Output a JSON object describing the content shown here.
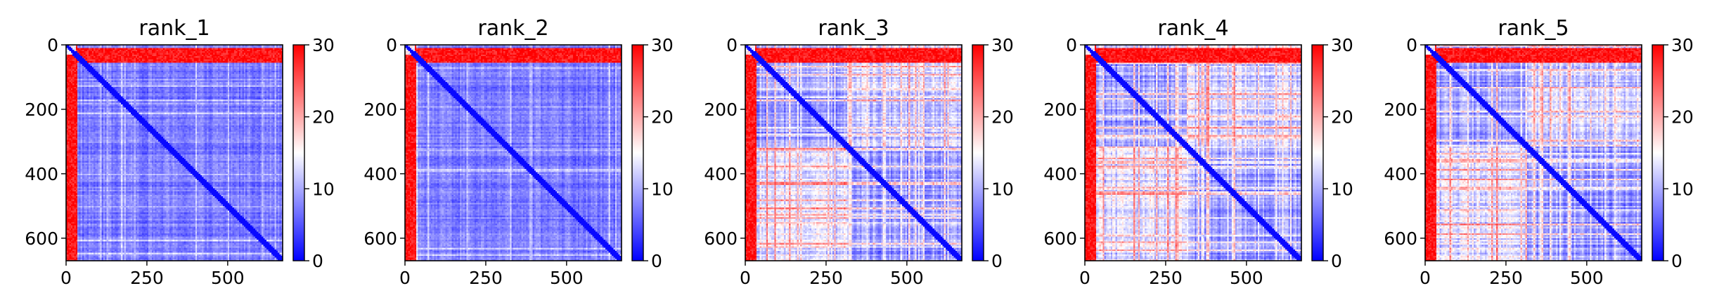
{
  "chart_data": [
    {
      "type": "heatmap",
      "title": "rank_1",
      "xlim": [
        0,
        670
      ],
      "ylim": [
        670,
        0
      ],
      "x_ticks": [
        0,
        250,
        500
      ],
      "x_tick_labels": [
        "0",
        "250",
        "500"
      ],
      "y_ticks": [
        0,
        200,
        400,
        600
      ],
      "y_tick_labels": [
        "0",
        "200",
        "400",
        "600"
      ],
      "colorbar": {
        "cmap": "bwr",
        "range": [
          0,
          30
        ],
        "ticks": [
          0,
          10,
          20,
          30
        ],
        "tick_labels": [
          "0",
          "10",
          "20",
          "30"
        ]
      },
      "colors": {
        "low": "#0000ff",
        "mid": "#ffffff",
        "high": "#ff0000"
      }
    },
    {
      "type": "heatmap",
      "title": "rank_2",
      "xlim": [
        0,
        670
      ],
      "ylim": [
        670,
        0
      ],
      "x_ticks": [
        0,
        250,
        500
      ],
      "x_tick_labels": [
        "0",
        "250",
        "500"
      ],
      "y_ticks": [
        0,
        200,
        400,
        600
      ],
      "y_tick_labels": [
        "0",
        "200",
        "400",
        "600"
      ],
      "colorbar": {
        "cmap": "bwr",
        "range": [
          0,
          30
        ],
        "ticks": [
          0,
          10,
          20,
          30
        ],
        "tick_labels": [
          "0",
          "10",
          "20",
          "30"
        ]
      },
      "colors": {
        "low": "#0000ff",
        "mid": "#ffffff",
        "high": "#ff0000"
      }
    },
    {
      "type": "heatmap",
      "title": "rank_3",
      "xlim": [
        0,
        670
      ],
      "ylim": [
        670,
        0
      ],
      "x_ticks": [
        0,
        250,
        500
      ],
      "x_tick_labels": [
        "0",
        "250",
        "500"
      ],
      "y_ticks": [
        0,
        200,
        400,
        600
      ],
      "y_tick_labels": [
        "0",
        "200",
        "400",
        "600"
      ],
      "colorbar": {
        "cmap": "bwr",
        "range": [
          0,
          30
        ],
        "ticks": [
          0,
          10,
          20,
          30
        ],
        "tick_labels": [
          "0",
          "10",
          "20",
          "30"
        ]
      },
      "colors": {
        "low": "#0000ff",
        "mid": "#ffffff",
        "high": "#ff0000"
      }
    },
    {
      "type": "heatmap",
      "title": "rank_4",
      "xlim": [
        0,
        670
      ],
      "ylim": [
        670,
        0
      ],
      "x_ticks": [
        0,
        250,
        500
      ],
      "x_tick_labels": [
        "0",
        "250",
        "500"
      ],
      "y_ticks": [
        0,
        200,
        400,
        600
      ],
      "y_tick_labels": [
        "0",
        "200",
        "400",
        "600"
      ],
      "colorbar": {
        "cmap": "bwr",
        "range": [
          0,
          30
        ],
        "ticks": [
          0,
          10,
          20,
          30
        ],
        "tick_labels": [
          "0",
          "10",
          "20",
          "30"
        ]
      },
      "colors": {
        "low": "#0000ff",
        "mid": "#ffffff",
        "high": "#ff0000"
      }
    },
    {
      "type": "heatmap",
      "title": "rank_5",
      "xlim": [
        0,
        670
      ],
      "ylim": [
        670,
        0
      ],
      "x_ticks": [
        0,
        250,
        500
      ],
      "x_tick_labels": [
        "0",
        "250",
        "500"
      ],
      "y_ticks": [
        0,
        200,
        400,
        600
      ],
      "y_tick_labels": [
        "0",
        "200",
        "400",
        "600"
      ],
      "colorbar": {
        "cmap": "bwr",
        "range": [
          0,
          30
        ],
        "ticks": [
          0,
          10,
          20,
          30
        ],
        "tick_labels": [
          "0",
          "10",
          "20",
          "30"
        ]
      },
      "colors": {
        "low": "#0000ff",
        "mid": "#ffffff",
        "high": "#ff0000"
      }
    }
  ]
}
